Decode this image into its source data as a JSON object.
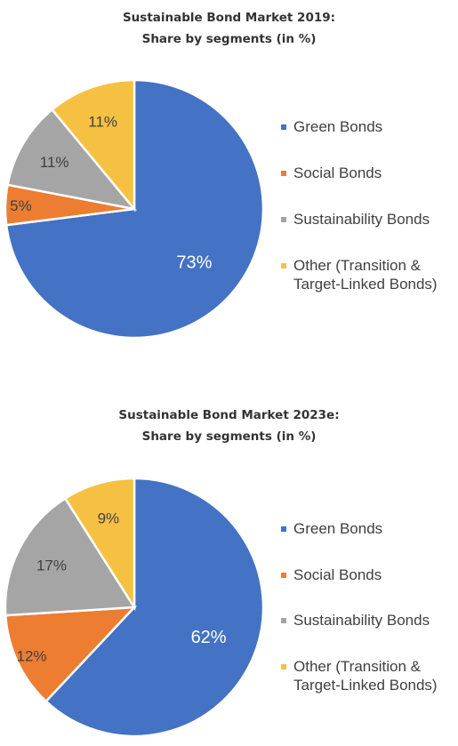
{
  "chart_data": [
    {
      "type": "pie",
      "title": "Sustainable Bond Market 2019:",
      "subtitle": "Share by segments (in %)",
      "categories": [
        "Green Bonds",
        "Social Bonds",
        "Sustainability Bonds",
        "Other (Transition & Target-Linked Bonds)"
      ],
      "legend_lines": [
        [
          "Green Bonds"
        ],
        [
          "Social Bonds"
        ],
        [
          "Sustainability Bonds"
        ],
        [
          "Other (Transition &",
          "Target-Linked Bonds)"
        ]
      ],
      "values": [
        73,
        5,
        11,
        11
      ],
      "labels": [
        "73%",
        "5%",
        "11%",
        "11%"
      ],
      "colors": [
        "#4472C4",
        "#ED7D31",
        "#A5A5A5",
        "#F6C143"
      ],
      "legend_position": "right"
    },
    {
      "type": "pie",
      "title": "Sustainable Bond Market 2023e:",
      "subtitle": "Share by segments (in %)",
      "categories": [
        "Green Bonds",
        "Social Bonds",
        "Sustainability Bonds",
        "Other (Transition & Target-Linked Bonds)"
      ],
      "legend_lines": [
        [
          "Green Bonds"
        ],
        [
          "Social Bonds"
        ],
        [
          "Sustainability Bonds"
        ],
        [
          "Other (Transition &",
          "Target-Linked Bonds)"
        ]
      ],
      "values": [
        62,
        12,
        17,
        9
      ],
      "labels": [
        "62%",
        "12%",
        "17%",
        "9%"
      ],
      "colors": [
        "#4472C4",
        "#ED7D31",
        "#A5A5A5",
        "#F6C143"
      ],
      "legend_position": "right"
    }
  ]
}
